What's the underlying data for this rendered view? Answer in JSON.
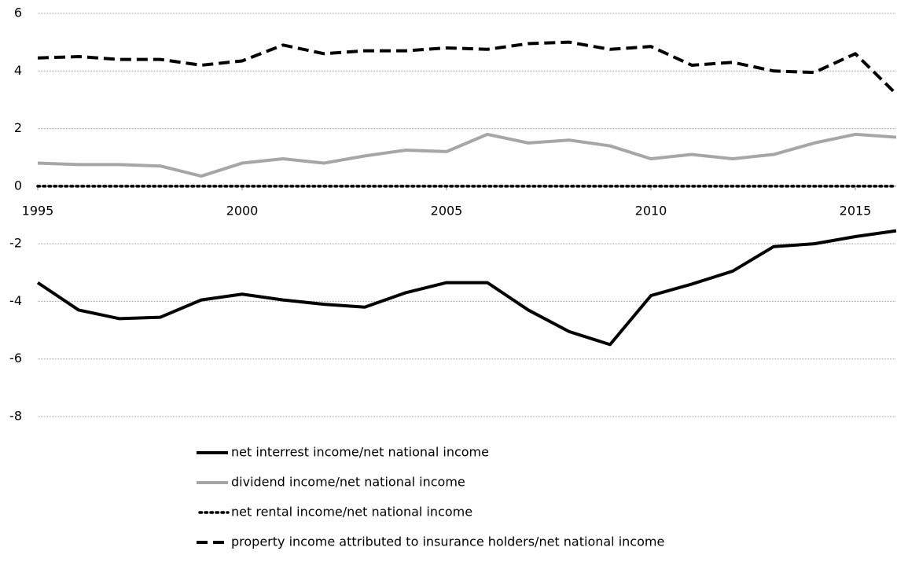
{
  "chart_data": {
    "type": "line",
    "x": [
      1995,
      1996,
      1997,
      1998,
      1999,
      2000,
      2001,
      2002,
      2003,
      2004,
      2005,
      2006,
      2007,
      2008,
      2009,
      2010,
      2011,
      2012,
      2013,
      2014,
      2015,
      2016
    ],
    "series": [
      {
        "name": "net interrest income/net national income",
        "color": "#000000",
        "dash": "solid",
        "values": [
          -3.35,
          -4.3,
          -4.6,
          -4.55,
          -3.95,
          -3.75,
          -3.95,
          -4.1,
          -4.2,
          -3.7,
          -3.35,
          -3.35,
          -4.3,
          -5.05,
          -5.5,
          -3.8,
          -3.4,
          -2.95,
          -2.1,
          -2.0,
          -1.75,
          -1.55
        ]
      },
      {
        "name": "dividend income/net national income",
        "color": "#a6a6a6",
        "dash": "solid",
        "values": [
          0.8,
          0.75,
          0.75,
          0.7,
          0.35,
          0.8,
          0.95,
          0.8,
          1.05,
          1.25,
          1.2,
          1.8,
          1.5,
          1.6,
          1.4,
          0.95,
          1.1,
          0.95,
          1.1,
          1.5,
          1.8,
          1.7
        ]
      },
      {
        "name": "net rental income/net national income",
        "color": "#000000",
        "dash": "dotted",
        "values": [
          0,
          0,
          0,
          0,
          0,
          0,
          0,
          0,
          0,
          0,
          0,
          0,
          0,
          0,
          0,
          0,
          0,
          0,
          0,
          0,
          0,
          0
        ]
      },
      {
        "name": "property income attributed to insurance holders/net national income",
        "color": "#000000",
        "dash": "dashed",
        "values": [
          4.45,
          4.5,
          4.4,
          4.4,
          4.2,
          4.35,
          4.9,
          4.6,
          4.7,
          4.7,
          4.8,
          4.75,
          4.95,
          5.0,
          4.75,
          4.85,
          4.2,
          4.3,
          4.0,
          3.95,
          4.6,
          3.2
        ]
      }
    ],
    "xlim": [
      1995,
      2016
    ],
    "xticks": [
      1995,
      2000,
      2005,
      2010,
      2015
    ],
    "ylim": [
      -8,
      6
    ],
    "yticks": [
      -8,
      -6,
      -4,
      -2,
      0,
      2,
      4,
      6
    ],
    "grid": true,
    "legend": "bottom"
  }
}
